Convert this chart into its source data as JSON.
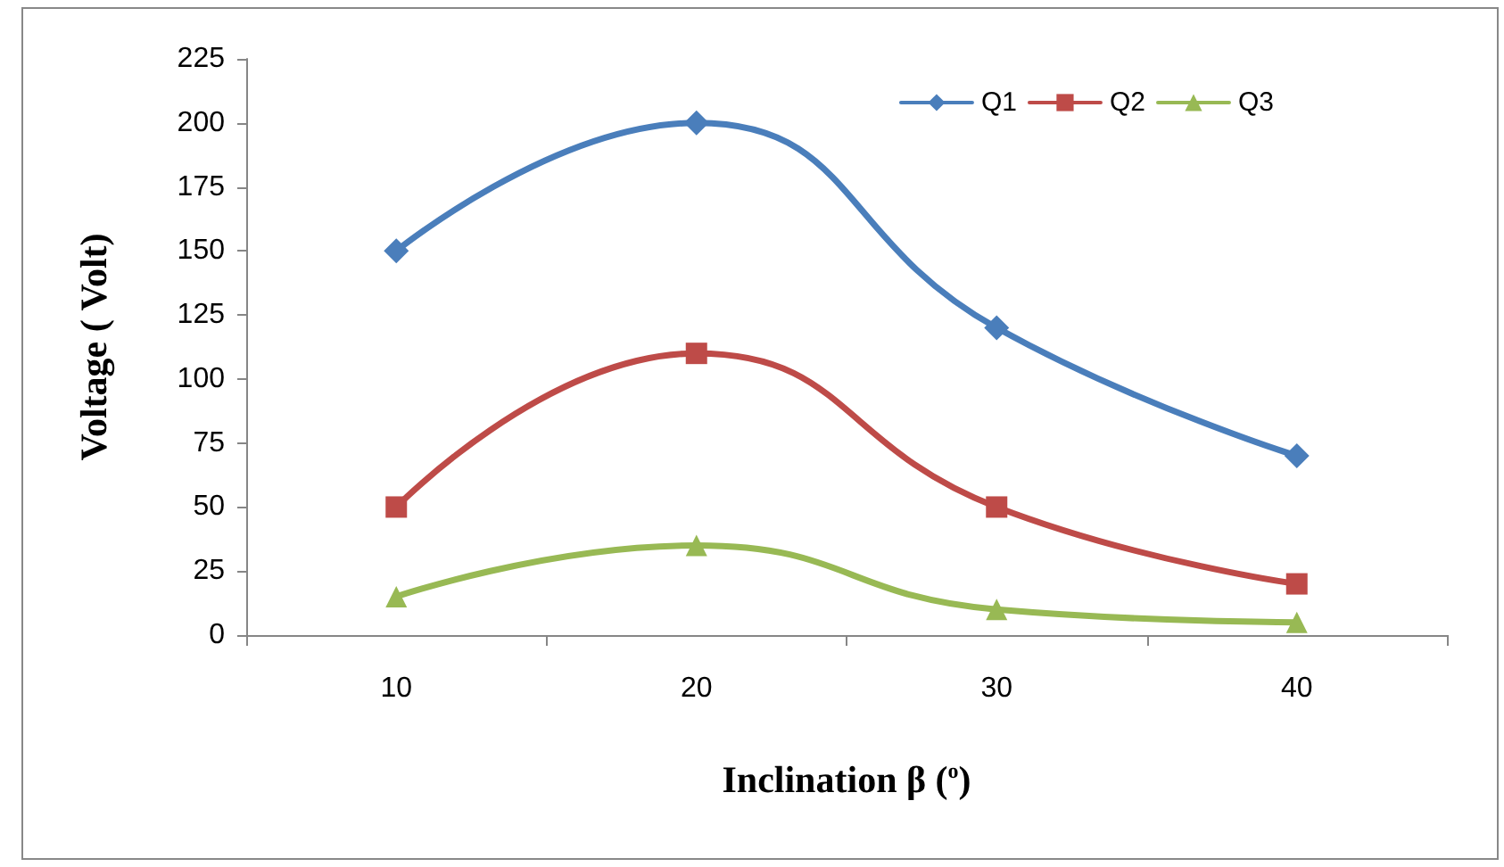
{
  "chart_data": {
    "type": "line",
    "xlabel": "Inclination β ($^{o}$)",
    "ylabel": "Voltage ( Volt)",
    "categories": [
      "10",
      "20",
      "30",
      "40"
    ],
    "series": [
      {
        "name": "Q1",
        "color": "#4a7ebb",
        "marker": "diamond",
        "values": [
          150,
          200,
          120,
          70
        ]
      },
      {
        "name": "Q2",
        "color": "#be4b48",
        "marker": "square",
        "values": [
          50,
          110,
          50,
          20
        ]
      },
      {
        "name": "Q3",
        "color": "#98b954",
        "marker": "triangle",
        "values": [
          15,
          35,
          10,
          5
        ]
      }
    ],
    "ylim": [
      0,
      225
    ],
    "yticks": [
      0,
      25,
      50,
      75,
      100,
      125,
      150,
      175,
      200,
      225
    ],
    "grid": false,
    "legend": "top right",
    "line_style": "solid"
  }
}
